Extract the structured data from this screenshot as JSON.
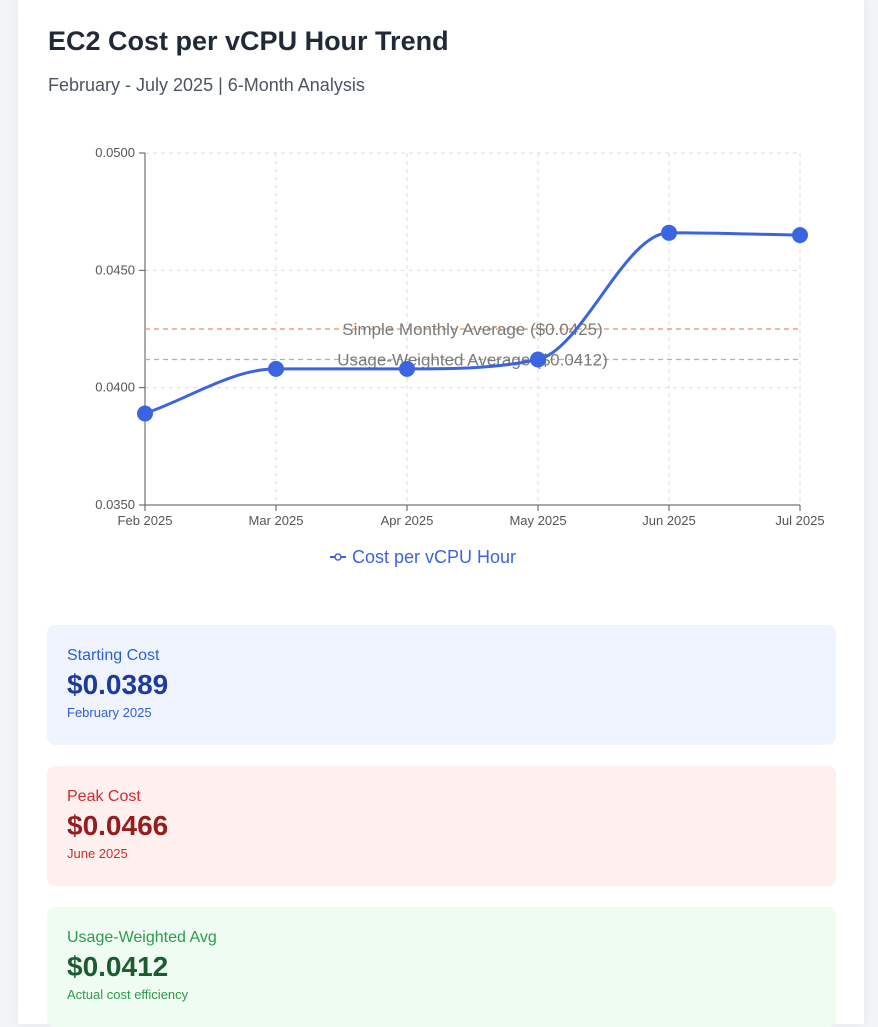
{
  "header": {
    "title": "EC2 Cost per vCPU Hour Trend",
    "subtitle": "February - July 2025 | 6-Month Analysis"
  },
  "chart_data": {
    "type": "line",
    "x": [
      "Feb 2025",
      "Mar 2025",
      "Apr 2025",
      "May 2025",
      "Jun 2025",
      "Jul 2025"
    ],
    "series": [
      {
        "name": "Cost per vCPU Hour",
        "color": "#3b64e0",
        "values": [
          0.0389,
          0.0408,
          0.0408,
          0.0412,
          0.0466,
          0.0465
        ]
      }
    ],
    "reference_lines": [
      {
        "label": "Simple Monthly Average ($0.0425)",
        "value": 0.0425,
        "color": "#f08a4b"
      },
      {
        "label": "Usage-Weighted Average ($0.0412)",
        "value": 0.0412,
        "color": "#7fcf94"
      }
    ],
    "yticks": [
      "0.0500",
      "0.0450",
      "0.0400",
      "0.0350"
    ],
    "ytick_values": [
      0.05,
      0.045,
      0.04,
      0.035
    ],
    "ylim": [
      0.035,
      0.05
    ],
    "grid": true,
    "legend": "bottom"
  },
  "stats": [
    {
      "label": "Starting Cost",
      "value": "$0.0389",
      "note": "February 2025"
    },
    {
      "label": "Peak Cost",
      "value": "$0.0466",
      "note": "June 2025"
    },
    {
      "label": "Usage-Weighted Avg",
      "value": "$0.0412",
      "note": "Actual cost efficiency"
    }
  ]
}
